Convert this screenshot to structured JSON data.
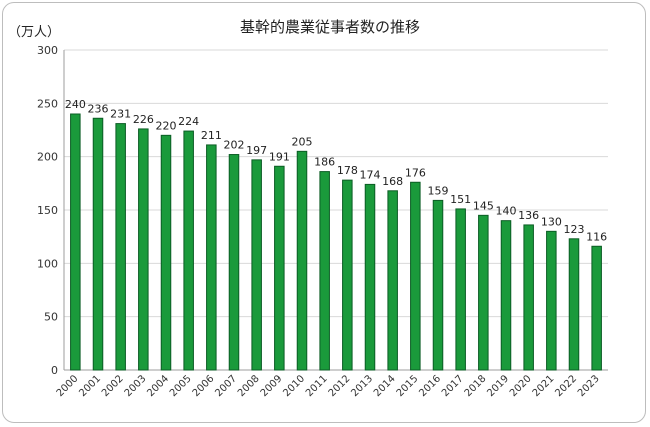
{
  "chart_data": {
    "type": "bar",
    "title": "基幹的農業従事者数の推移",
    "unit_label": "（万人）",
    "categories": [
      "2000",
      "2001",
      "2002",
      "2003",
      "2004",
      "2005",
      "2006",
      "2007",
      "2008",
      "2009",
      "2010",
      "2011",
      "2012",
      "2013",
      "2014",
      "2015",
      "2016",
      "2017",
      "2018",
      "2019",
      "2020",
      "2021",
      "2022",
      "2023"
    ],
    "values": [
      240,
      236,
      231,
      226,
      220,
      224,
      211,
      202,
      197,
      191,
      205,
      186,
      178,
      174,
      168,
      176,
      159,
      151,
      145,
      140,
      136,
      130,
      123,
      116
    ],
    "ylim": [
      0,
      300
    ],
    "yticks": [
      0,
      50,
      100,
      150,
      200,
      250,
      300
    ],
    "grid": true,
    "bar_color": "#1a9a3b",
    "bar_edge_color": "#0b5d24"
  }
}
